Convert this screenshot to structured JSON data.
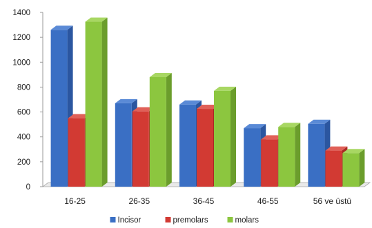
{
  "chart_data": {
    "type": "bar",
    "title": "",
    "xlabel": "",
    "ylabel": "",
    "categories": [
      "16-25",
      "26-35",
      "36-45",
      "46-55",
      "56 ve üstü"
    ],
    "series": [
      {
        "name": "Incisor",
        "values": [
          1260,
          670,
          660,
          470,
          505
        ],
        "color": "#3a6fc4",
        "side": "#2b56a0",
        "top": "#5a8ad6"
      },
      {
        "name": "premolars",
        "values": [
          550,
          605,
          625,
          380,
          290
        ],
        "color": "#d23a33",
        "side": "#a82923",
        "top": "#e06058"
      },
      {
        "name": "molars",
        "values": [
          1325,
          880,
          770,
          480,
          270
        ],
        "color": "#8cc63f",
        "side": "#6b9d2c",
        "top": "#a8d763"
      }
    ],
    "ylim": [
      0,
      1400
    ],
    "yticks": [
      0,
      200,
      400,
      600,
      800,
      1000,
      1200,
      1400
    ],
    "grid": false,
    "legend_position": "bottom"
  }
}
